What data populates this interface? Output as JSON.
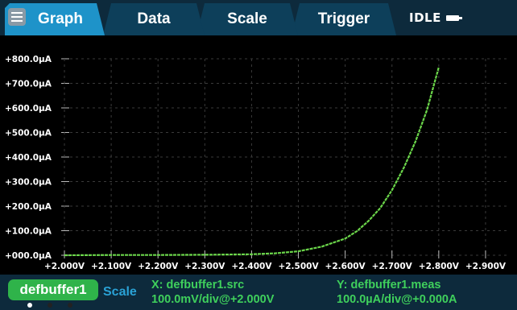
{
  "tabs": [
    {
      "label": "Graph",
      "active": true
    },
    {
      "label": "Data",
      "active": false
    },
    {
      "label": "Scale",
      "active": false
    },
    {
      "label": "Trigger",
      "active": false
    }
  ],
  "status": {
    "text": "IDLE",
    "icon": "plug-icon"
  },
  "colors": {
    "bar_bg": "#0d2a3c",
    "tab_active": "#1e93c9",
    "tab_inactive": "#0d3f5a",
    "trace": "#6bd64a",
    "buffer_pill": "#2fb34a",
    "scale_label": "#2aa2d6",
    "axis_info": "#3fd05c"
  },
  "bottom": {
    "buffer_name": "defbuffer1",
    "scale_label": "Scale",
    "x_line1": "X: defbuffer1.src",
    "x_line2": "100.0mV/div@+2.000V",
    "y_line1": "Y: defbuffer1.meas",
    "y_line2": "100.0µA/div@+0.000A",
    "page_count": 3,
    "active_page": 1
  },
  "chart_data": {
    "type": "line",
    "x_tick_labels": [
      "+2.000V",
      "+2.100V",
      "+2.200V",
      "+2.300V",
      "+2.400V",
      "+2.500V",
      "+2.600V",
      "+2.700V",
      "+2.800V",
      "+2.900V"
    ],
    "y_tick_labels": [
      "+000.0µA",
      "+100.0µA",
      "+200.0µA",
      "+300.0µA",
      "+400.0µA",
      "+500.0µA",
      "+600.0µA",
      "+700.0µA",
      "+800.0µA"
    ],
    "xlim": [
      2.0,
      2.95
    ],
    "ylim": [
      0,
      800
    ],
    "grid": true,
    "series": [
      {
        "x": [
          2.0,
          2.1,
          2.2,
          2.3,
          2.4,
          2.45,
          2.5,
          2.55,
          2.6,
          2.625,
          2.65,
          2.675,
          2.7,
          2.725,
          2.75,
          2.775,
          2.8
        ],
        "y": [
          0,
          1,
          1,
          2,
          4,
          8,
          16,
          35,
          68,
          98,
          140,
          192,
          265,
          355,
          462,
          592,
          765
        ]
      }
    ]
  }
}
